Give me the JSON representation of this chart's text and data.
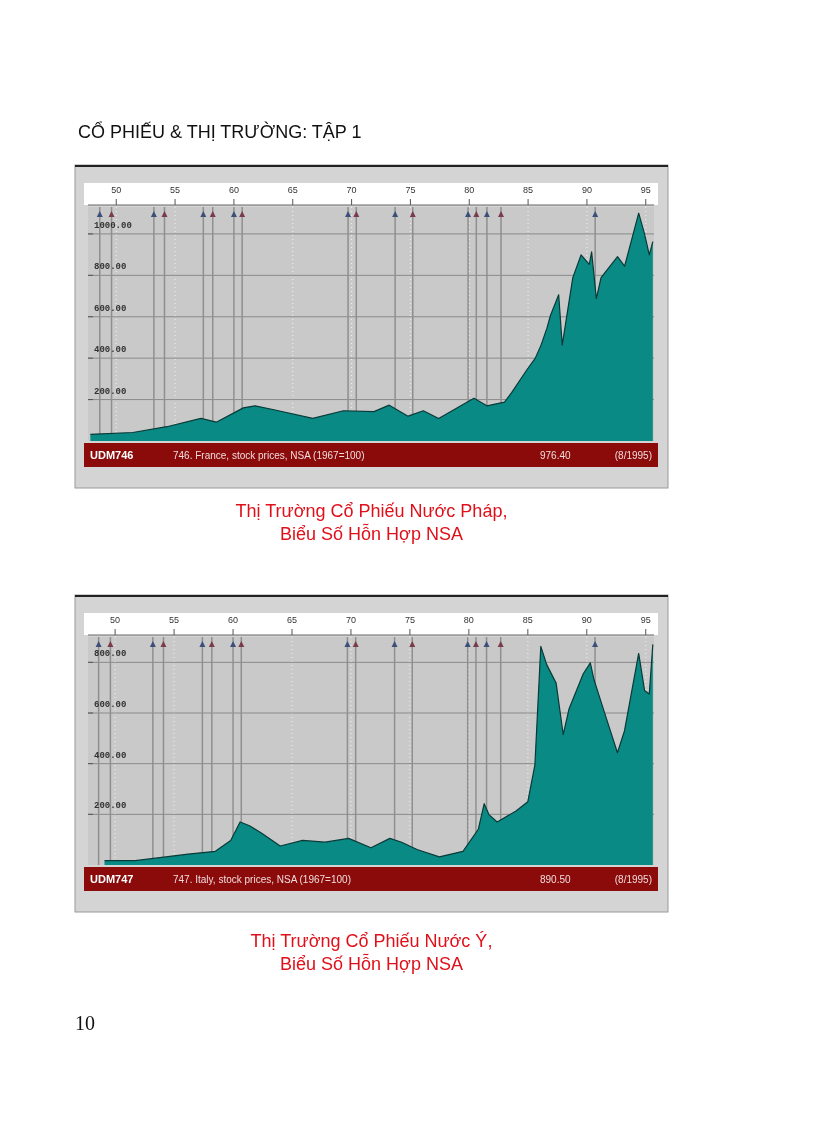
{
  "chart_data": [
    {
      "type": "area",
      "title": "Thị Trường Cổ Phiếu Nước Pháp,\nBiểu Số Hỗn Hợp NSA",
      "annotations": [
        "CỔ PHIẾU & THỊ TRƯỜNG: TẬP 1",
        "UDM746",
        "746. France, stock prices, NSA (1967=100)",
        "976.40",
        "(8/1995)"
      ],
      "x": [
        1947.8,
        1951.4,
        1954.3,
        1957.2,
        1958.5,
        1960.8,
        1961.8,
        1963.4,
        1966.7,
        1969.3,
        1971.9,
        1973.2,
        1974.8,
        1976.1,
        1977.4,
        1979.1,
        1980.4,
        1981.5,
        1983.0,
        1983.6,
        1984.9,
        1985.6,
        1986.1,
        1986.6,
        1986.9,
        1987.6,
        1987.9,
        1988.8,
        1989.5,
        1990.2,
        1990.4,
        1990.8,
        1991.2,
        1992.6,
        1993.2,
        1994.4,
        1994.9,
        1995.3,
        1995.6
      ],
      "series": [
        {
          "color": "#0a8a84",
          "values": [
            32,
            41,
            69,
            109,
            91,
            160,
            170,
            151,
            109,
            146,
            142,
            173,
            120,
            146,
            109,
            164,
            206,
            170,
            188,
            234,
            344,
            399,
            463,
            545,
            606,
            706,
            463,
            789,
            899,
            853,
            913,
            688,
            789,
            890,
            844,
            1100,
            999,
            899,
            963
          ]
        }
      ],
      "xlim": [
        1947.6,
        1995.7
      ],
      "ylim": [
        0,
        1130
      ],
      "xticks": [
        {
          "value": 1950,
          "label": "50"
        },
        {
          "value": 1955,
          "label": "55"
        },
        {
          "value": 1960,
          "label": "60"
        },
        {
          "value": 1965,
          "label": "65"
        },
        {
          "value": 1970,
          "label": "70"
        },
        {
          "value": 1975,
          "label": "75"
        },
        {
          "value": 1980,
          "label": "80"
        },
        {
          "value": 1985,
          "label": "85"
        },
        {
          "value": 1990,
          "label": "90"
        },
        {
          "value": 1995,
          "label": "95"
        }
      ],
      "yticks": [
        {
          "value": 200,
          "label": "200.00"
        },
        {
          "value": 400,
          "label": "400.00"
        },
        {
          "value": 600,
          "label": "600.00"
        },
        {
          "value": 800,
          "label": "800.00"
        },
        {
          "value": 1000,
          "label": "1000.00"
        }
      ],
      "grid": true,
      "ref_lines": [
        {
          "axis": "x",
          "value": 1948.6
        },
        {
          "axis": "x",
          "value": 1949.6
        },
        {
          "axis": "x",
          "value": 1953.2
        },
        {
          "axis": "x",
          "value": 1954.1
        },
        {
          "axis": "x",
          "value": 1957.4
        },
        {
          "axis": "x",
          "value": 1958.2
        },
        {
          "axis": "x",
          "value": 1960.0
        },
        {
          "axis": "x",
          "value": 1960.7
        },
        {
          "axis": "x",
          "value": 1969.7
        },
        {
          "axis": "x",
          "value": 1970.4
        },
        {
          "axis": "x",
          "value": 1973.7
        },
        {
          "axis": "x",
          "value": 1975.2
        },
        {
          "axis": "x",
          "value": 1979.9
        },
        {
          "axis": "x",
          "value": 1980.6
        },
        {
          "axis": "x",
          "value": 1981.5
        },
        {
          "axis": "x",
          "value": 1982.7
        },
        {
          "axis": "x",
          "value": 1990.7
        }
      ]
    },
    {
      "type": "area",
      "title": "Thị Trường Cổ Phiếu Nước Ý,\nBiểu Số Hỗn Hợp NSA",
      "annotations": [
        "UDM747",
        "747. Italy, stock prices, NSA (1967=100)",
        "890.50",
        "(8/1995)",
        "10"
      ],
      "x": [
        1949.1,
        1951.7,
        1954.3,
        1956.2,
        1958.5,
        1959.8,
        1960.6,
        1961.4,
        1962.4,
        1964.0,
        1965.9,
        1967.8,
        1969.8,
        1971.7,
        1973.3,
        1974.3,
        1975.6,
        1977.5,
        1979.5,
        1980.8,
        1981.3,
        1981.7,
        1982.4,
        1984.0,
        1985.0,
        1985.6,
        1986.1,
        1986.6,
        1987.4,
        1988.0,
        1988.5,
        1989.7,
        1990.3,
        1990.6,
        1991.3,
        1991.9,
        1992.6,
        1993.2,
        1994.4,
        1994.9,
        1995.3,
        1995.6
      ],
      "series": [
        {
          "color": "#0a8a84",
          "values": [
            17,
            17,
            32,
            43,
            54,
            97,
            170,
            155,
            126,
            75,
            97,
            90,
            105,
            68,
            105,
            90,
            61,
            32,
            54,
            141,
            242,
            199,
            170,
            213,
            250,
            395,
            863,
            791,
            718,
            515,
            617,
            755,
            798,
            733,
            631,
            544,
            443,
            530,
            835,
            689,
            675,
            871
          ]
        }
      ],
      "xlim": [
        1947.7,
        1995.7
      ],
      "ylim": [
        0,
        900
      ],
      "xticks": [
        {
          "value": 1950,
          "label": "50"
        },
        {
          "value": 1955,
          "label": "55"
        },
        {
          "value": 1960,
          "label": "60"
        },
        {
          "value": 1965,
          "label": "65"
        },
        {
          "value": 1970,
          "label": "70"
        },
        {
          "value": 1975,
          "label": "75"
        },
        {
          "value": 1980,
          "label": "80"
        },
        {
          "value": 1985,
          "label": "85"
        },
        {
          "value": 1990,
          "label": "90"
        },
        {
          "value": 1995,
          "label": "95"
        }
      ],
      "yticks": [
        {
          "value": 200,
          "label": "200.00"
        },
        {
          "value": 400,
          "label": "400.00"
        },
        {
          "value": 600,
          "label": "600.00"
        },
        {
          "value": 800,
          "label": "800.00"
        }
      ],
      "grid": true,
      "ref_lines": [
        {
          "axis": "x",
          "value": 1948.6
        },
        {
          "axis": "x",
          "value": 1949.6
        },
        {
          "axis": "x",
          "value": 1953.2
        },
        {
          "axis": "x",
          "value": 1954.1
        },
        {
          "axis": "x",
          "value": 1957.4
        },
        {
          "axis": "x",
          "value": 1958.2
        },
        {
          "axis": "x",
          "value": 1960.0
        },
        {
          "axis": "x",
          "value": 1960.7
        },
        {
          "axis": "x",
          "value": 1969.7
        },
        {
          "axis": "x",
          "value": 1970.4
        },
        {
          "axis": "x",
          "value": 1973.7
        },
        {
          "axis": "x",
          "value": 1975.2
        },
        {
          "axis": "x",
          "value": 1979.9
        },
        {
          "axis": "x",
          "value": 1980.6
        },
        {
          "axis": "x",
          "value": 1981.5
        },
        {
          "axis": "x",
          "value": 1982.7
        },
        {
          "axis": "x",
          "value": 1990.7
        }
      ]
    }
  ]
}
